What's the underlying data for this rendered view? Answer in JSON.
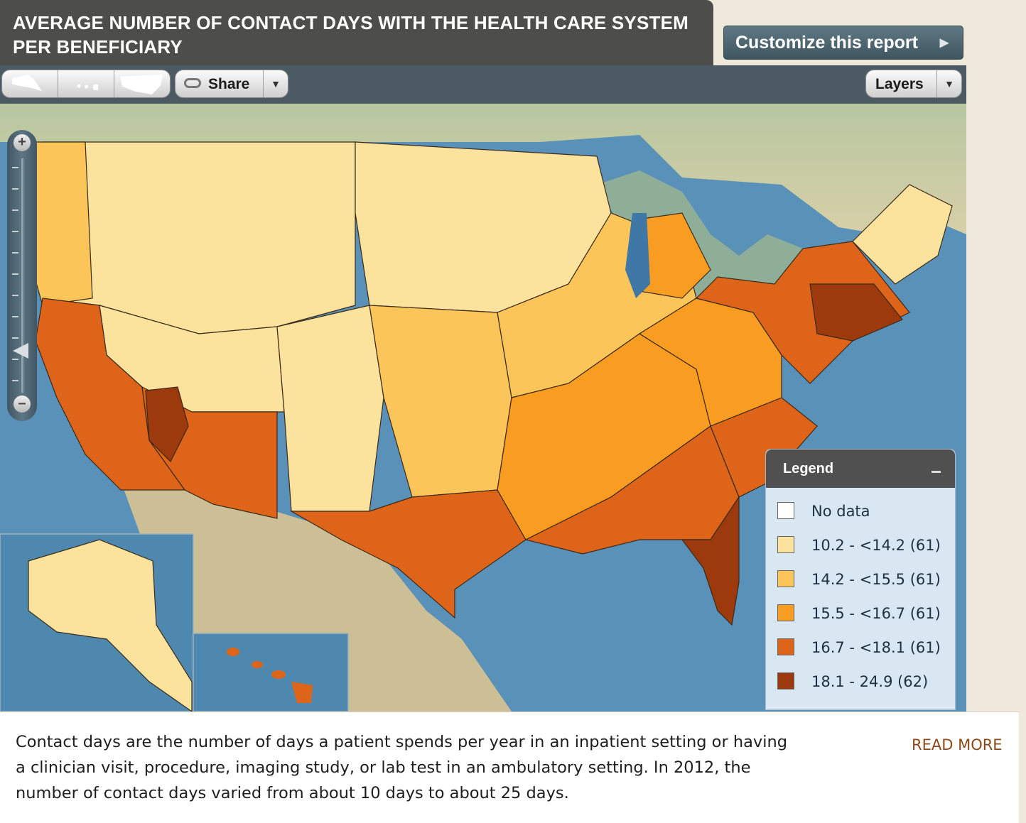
{
  "header": {
    "title": "AVERAGE NUMBER OF CONTACT DAYS WITH THE HEALTH CARE SYSTEM PER BENEFICIARY"
  },
  "toolbar": {
    "customize_label": "Customize this report",
    "share_label": "Share",
    "layers_label": "Layers",
    "region_buttons": [
      "alaska-icon",
      "hawaii-icon",
      "us-map-icon"
    ]
  },
  "legend": {
    "title": "Legend",
    "items": [
      {
        "label": "No data",
        "color": "#ffffff"
      },
      {
        "label": "10.2 - <14.2 (61)",
        "color": "#fbe39d"
      },
      {
        "label": "14.2 - <15.5 (61)",
        "color": "#fcc559"
      },
      {
        "label": "15.5 - <16.7 (61)",
        "color": "#f99d22"
      },
      {
        "label": "16.7 - <18.1 (61)",
        "color": "#dd6418"
      },
      {
        "label": "18.1 - 24.9 (62)",
        "color": "#9c3a0d"
      }
    ]
  },
  "footer": {
    "description": "Contact days are the number of days a patient spends per year in an inpatient setting or having a clinician visit, procedure, imaging study, or lab test in an ambulatory setting. In 2012, the number of contact days varied from about 10 days to about 25 days.",
    "read_more": "READ MORE"
  }
}
